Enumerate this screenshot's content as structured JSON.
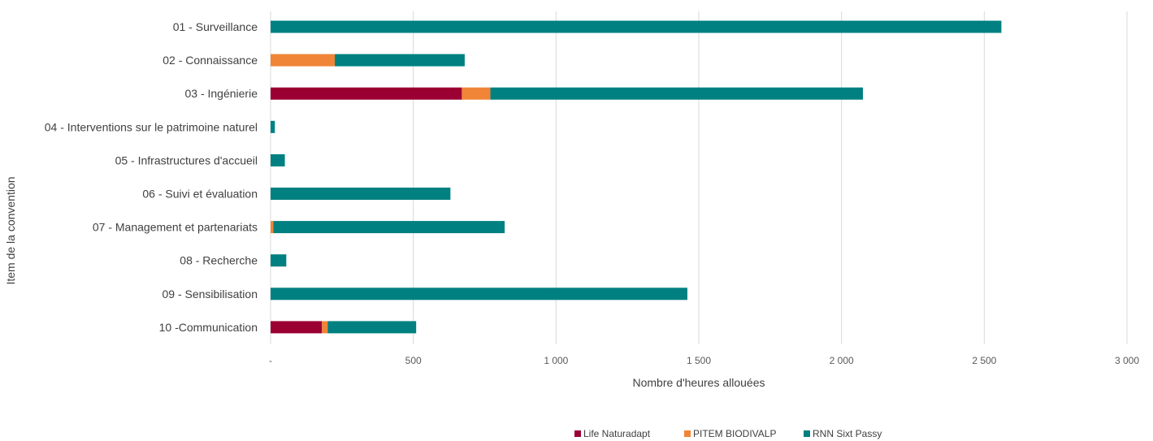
{
  "chart_data": {
    "type": "bar",
    "orientation": "horizontal",
    "stacked": true,
    "categories": [
      "01 - Surveillance",
      "02 - Connaissance",
      "03 - Ingénierie",
      "04 - Interventions sur le patrimoine naturel",
      "05 - Infrastructures d'accueil",
      "06 - Suivi et évaluation",
      "07 - Management et partenariats",
      "08 - Recherche",
      "09 - Sensibilisation",
      "10 -Communication"
    ],
    "series": [
      {
        "name": "Life Naturadapt",
        "color": "#9b0033",
        "values": [
          0,
          0,
          670,
          0,
          0,
          0,
          0,
          0,
          0,
          180
        ]
      },
      {
        "name": "PITEM BIODIVALP",
        "color": "#f08537",
        "values": [
          0,
          225,
          100,
          0,
          0,
          0,
          10,
          0,
          0,
          20
        ]
      },
      {
        "name": "RNN Sixt Passy",
        "color": "#008080",
        "values": [
          2560,
          455,
          1305,
          15,
          50,
          630,
          810,
          55,
          1460,
          310
        ]
      }
    ],
    "xlabel": "Nombre d'heures allouées",
    "ylabel": "Item de la convention",
    "xlim": [
      0,
      3000
    ],
    "xticks": [
      0,
      500,
      1000,
      1500,
      2000,
      2500,
      3000
    ],
    "xtick_labels": [
      "-",
      "500",
      "1 000",
      "1 500",
      "2 000",
      "2 500",
      "3 000"
    ],
    "grid": "vertical",
    "legend_position": "bottom"
  }
}
